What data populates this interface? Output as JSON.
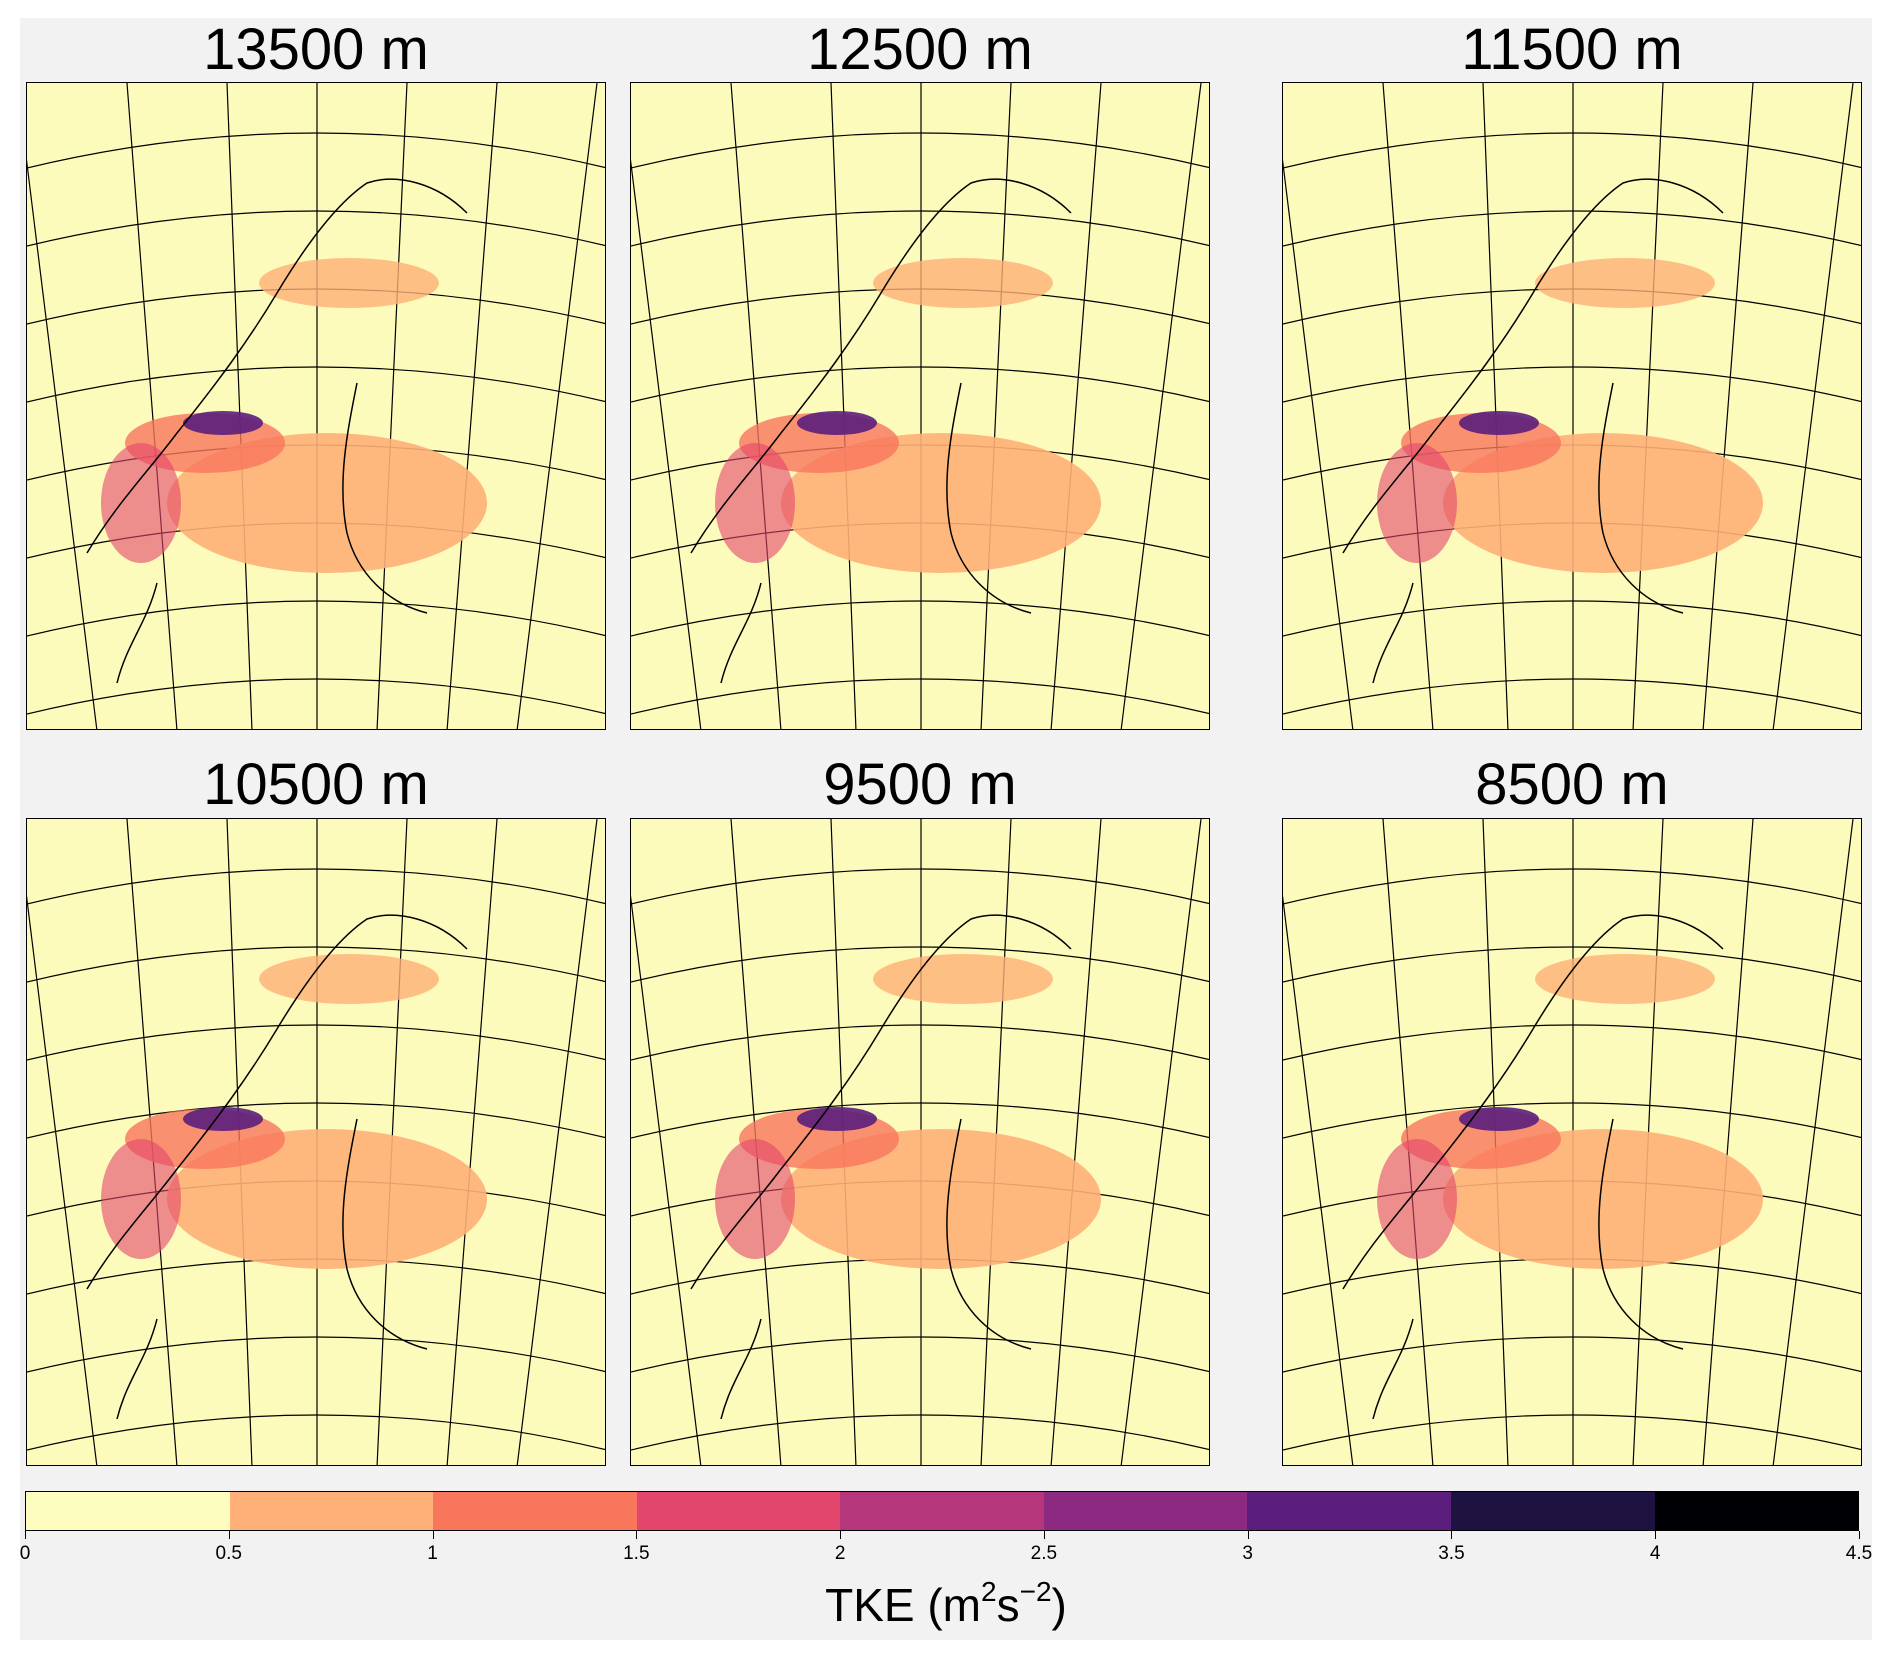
{
  "panels": [
    {
      "title": "13500 m"
    },
    {
      "title": "12500 m"
    },
    {
      "title": "11500 m"
    },
    {
      "title": "10500 m"
    },
    {
      "title": "9500 m"
    },
    {
      "title": "8500 m"
    }
  ],
  "colorbar": {
    "label_base": "TKE (m",
    "label_sup1": "2",
    "label_mid": "s",
    "label_sup2": "−2",
    "label_end": ")",
    "ticks": [
      "0",
      "0.5",
      "1",
      "1.5",
      "2",
      "2.5",
      "3",
      "3.5",
      "4",
      "4.5"
    ],
    "colors": [
      "#fcfdbf",
      "#feb078",
      "#f8765c",
      "#e2466d",
      "#b5367a",
      "#8c2981",
      "#5b1e7c",
      "#1e1340",
      "#000004"
    ]
  },
  "chart_data": {
    "type": "heatmap",
    "colorbar_levels": [
      0,
      0.5,
      1,
      1.5,
      2,
      2.5,
      3,
      3.5,
      4,
      4.5
    ],
    "colorbar_label": "TKE (m²s⁻²)",
    "panels": [
      "13500 m",
      "12500 m",
      "11500 m",
      "10500 m",
      "9500 m",
      "8500 m"
    ]
  }
}
